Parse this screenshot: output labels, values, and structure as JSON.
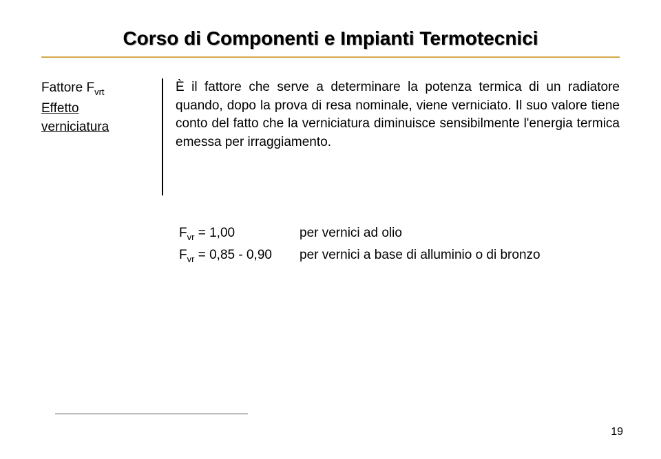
{
  "header": {
    "title": "Corso di Componenti e Impianti Termotecnici"
  },
  "left": {
    "factor_prefix": "Fattore F",
    "factor_sub": "vrt",
    "line2": "Effetto",
    "line3": "verniciatura"
  },
  "paragraph": "È il fattore che serve a determinare la potenza termica di un radiatore quando, dopo la prova di resa nominale, viene verniciato. Il suo valore tiene conto del fatto che la verniciatura diminuisce sensibilmente l'energia termica emessa per irraggiamento.",
  "values": {
    "row1": {
      "sym": "F",
      "sub": "vr",
      "eq": " = 1,00",
      "desc": "per vernici ad olio"
    },
    "row2": {
      "sym": "F",
      "sub": "vr",
      "eq": "  = 0,85 - 0,90",
      "desc": "per vernici a base di alluminio o di bronzo"
    }
  },
  "page": "19"
}
